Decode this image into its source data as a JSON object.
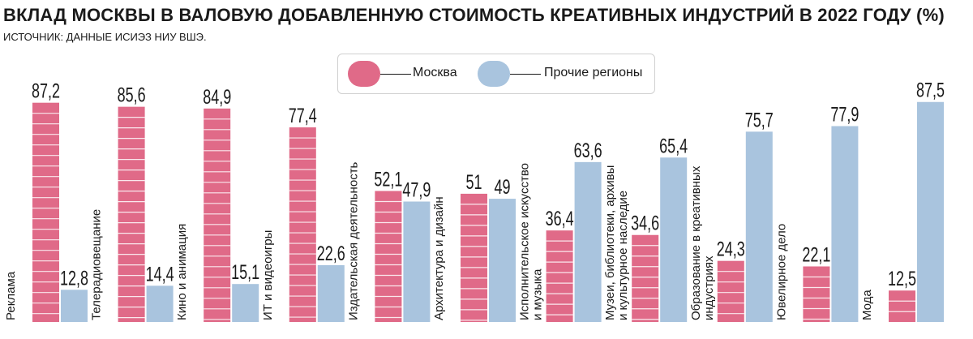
{
  "header": {
    "title": "ВКЛАД МОСКВЫ В ВАЛОВУЮ ДОБАВЛЕННУЮ СТОИМОСТЬ КРЕАТИВНЫХ ИНДУСТРИЙ В 2022 ГОДУ (%)",
    "source": "ИСТОЧНИК: ДАННЫЕ ИСИЭЗ НИУ ВШЭ."
  },
  "legend": {
    "moscow": "Москва",
    "regions": "Прочие регионы"
  },
  "colors": {
    "moscow": "#e06a88",
    "regions": "#a9c4de",
    "text": "#1a1a1a"
  },
  "chart_data": {
    "type": "bar",
    "title": "ВКЛАД МОСКВЫ В ВАЛОВУЮ ДОБАВЛЕННУЮ СТОИМОСТЬ КРЕАТИВНЫХ ИНДУСТРИЙ В 2022 ГОДУ (%)",
    "xlabel": "",
    "ylabel": "%",
    "ylim": [
      0,
      100
    ],
    "grid": false,
    "legend_position": "top-center",
    "categories": [
      [
        "Реклама"
      ],
      [
        "Телерадиовещание"
      ],
      [
        "Кино и анимация"
      ],
      [
        "ИТ и видеоигры"
      ],
      [
        "Издательская деятельность"
      ],
      [
        "Архитектура и дизайн"
      ],
      [
        "Исполнительское искусство",
        "и музыка"
      ],
      [
        "Музеи, библиотеки, архивы",
        "и культурное наследие"
      ],
      [
        "Образование в креативных",
        "индустриях"
      ],
      [
        "Ювелирное дело"
      ],
      [
        "Мода"
      ]
    ],
    "series": [
      {
        "name": "Москва",
        "values": [
          87.2,
          85.6,
          84.9,
          77.4,
          52.1,
          51,
          36.4,
          34.6,
          24.3,
          22.1,
          12.5
        ],
        "labels": [
          "87,2",
          "85,6",
          "84,9",
          "77,4",
          "52,1",
          "51",
          "36,4",
          "34,6",
          "24,3",
          "22,1",
          "12,5"
        ]
      },
      {
        "name": "Прочие регионы",
        "values": [
          12.8,
          14.4,
          15.1,
          22.6,
          47.9,
          49,
          63.6,
          65.4,
          75.7,
          77.9,
          87.5
        ],
        "labels": [
          "12,8",
          "14,4",
          "15,1",
          "22,6",
          "47,9",
          "49",
          "63,6",
          "65,4",
          "75,7",
          "77,9",
          "87,5"
        ]
      }
    ]
  }
}
